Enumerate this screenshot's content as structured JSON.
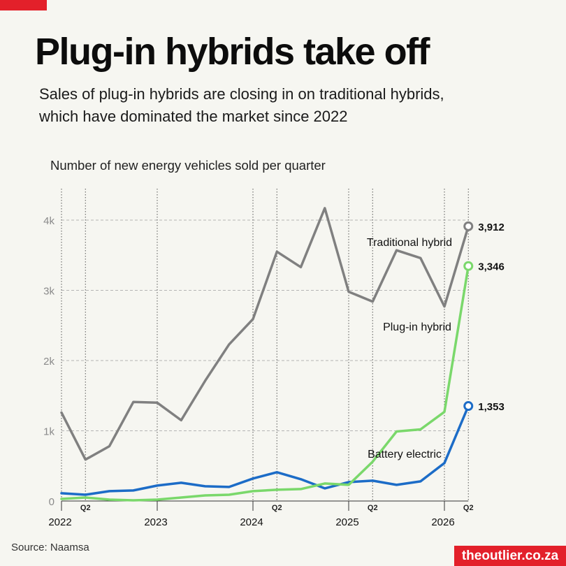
{
  "title": "Plug-in hybrids take off",
  "subtitle_lines": [
    "Sales of plug-in hybrids are closing in on traditional hybrids,",
    "which have dominated the market since 2022"
  ],
  "source": "Source: Naamsa",
  "brand": "theoutlier.co.za",
  "colors": {
    "accent": "#e3202a",
    "background": "#f6f6f1",
    "traditional": "#808080",
    "plugin": "#7ad86b",
    "battery": "#1c6cc7"
  },
  "chart_data": {
    "type": "line",
    "ylabel": "Number of new energy vehicles sold per quarter",
    "quarters": [
      "2022 Q1",
      "2022 Q2",
      "2022 Q3",
      "2022 Q4",
      "2023 Q1",
      "2023 Q2",
      "2023 Q3",
      "2023 Q4",
      "2024 Q1",
      "2024 Q2",
      "2024 Q3",
      "2024 Q4",
      "2025 Q1",
      "2025 Q2",
      "2025 Q3",
      "2025 Q4",
      "2026 Q1",
      "2026 Q2"
    ],
    "ylim": [
      0,
      4300
    ],
    "y_ticks": [
      {
        "value": 0,
        "label": "0"
      },
      {
        "value": 1000,
        "label": "1k"
      },
      {
        "value": 2000,
        "label": "2k"
      },
      {
        "value": 3000,
        "label": "3k"
      },
      {
        "value": 4000,
        "label": "4k"
      }
    ],
    "year_ticks": [
      {
        "index": 0,
        "label": "2022"
      },
      {
        "index": 4,
        "label": "2023"
      },
      {
        "index": 8,
        "label": "2024"
      },
      {
        "index": 12,
        "label": "2025"
      },
      {
        "index": 16,
        "label": "2026"
      }
    ],
    "q2_ticks": [
      {
        "index": 1,
        "label": "Q2"
      },
      {
        "index": 9,
        "label": "Q2"
      },
      {
        "index": 13,
        "label": "Q2"
      },
      {
        "index": 17,
        "label": "Q2"
      }
    ],
    "grid": true,
    "series": [
      {
        "key": "traditional",
        "name": "Traditional hybrid",
        "values": [
          1260,
          590,
          780,
          1410,
          1400,
          1150,
          1710,
          2230,
          2590,
          3550,
          3330,
          4170,
          2980,
          2840,
          3570,
          3460,
          2770,
          3912
        ],
        "end_label": "3,912"
      },
      {
        "key": "plugin",
        "name": "Plug-in hybrid",
        "values": [
          30,
          50,
          20,
          10,
          20,
          50,
          80,
          90,
          140,
          160,
          170,
          250,
          230,
          560,
          990,
          1020,
          1270,
          3346
        ],
        "end_label": "3,346"
      },
      {
        "key": "battery",
        "name": "Battery electric",
        "values": [
          110,
          90,
          140,
          150,
          220,
          260,
          210,
          200,
          320,
          410,
          310,
          180,
          270,
          290,
          230,
          280,
          540,
          1353
        ],
        "end_label": "1,353"
      }
    ]
  }
}
